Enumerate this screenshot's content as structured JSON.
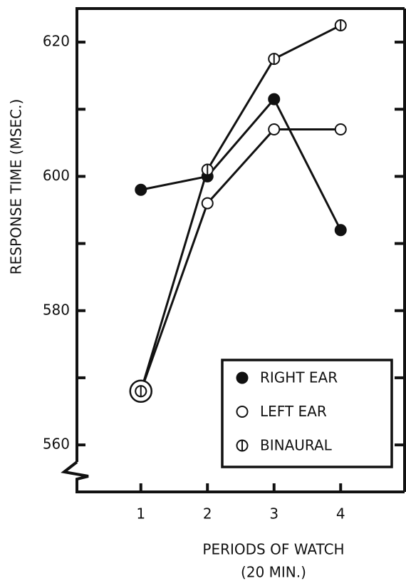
{
  "chart_data": {
    "type": "line",
    "xlabel": "PERIODS OF WATCH",
    "xlabel2": "(20 MIN.)",
    "ylabel": "RESPONSE TIME (MSEC.)",
    "x": [
      1,
      2,
      3,
      4
    ],
    "series": [
      {
        "name": "RIGHT EAR",
        "color": "#111111",
        "marker": "filled",
        "values": [
          598,
          600,
          611.5,
          592
        ]
      },
      {
        "name": "LEFT EAR",
        "color": "#111111",
        "marker": "open",
        "values": [
          568,
          596,
          607,
          607
        ]
      },
      {
        "name": "BINAURAL",
        "color": "#111111",
        "marker": "half",
        "values": [
          568,
          601,
          617.5,
          622.5
        ]
      }
    ],
    "xlim": [
      0.04,
      4.96
    ],
    "ylim": [
      553,
      625
    ],
    "xticks": [
      1,
      2,
      3,
      4
    ],
    "yticks": [
      560,
      580,
      600,
      620
    ],
    "yticks_minor": [
      570,
      590,
      610
    ],
    "axis_break": true,
    "legend": "lower right"
  }
}
